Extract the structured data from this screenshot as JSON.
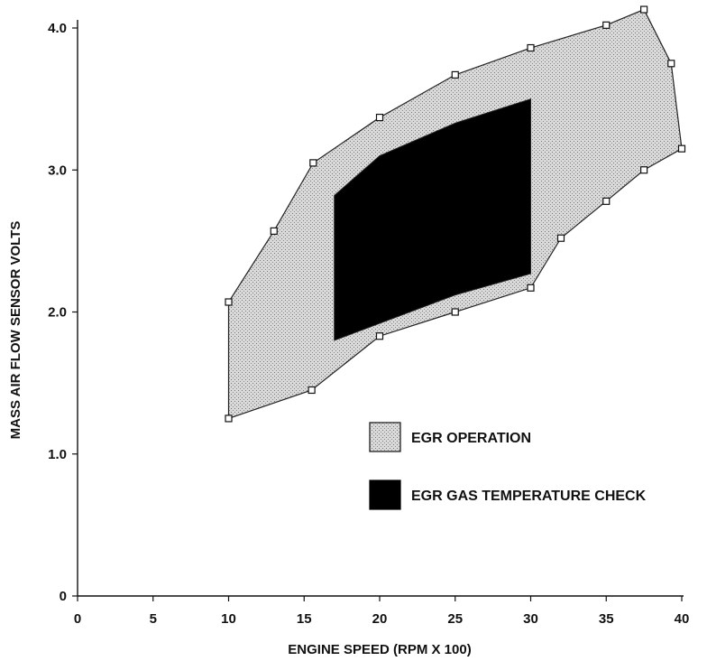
{
  "chart_data": {
    "type": "area",
    "xlabel": "ENGINE SPEED (RPM X 100)",
    "ylabel": "MASS AIR FLOW SENSOR VOLTS",
    "xlim": [
      0,
      40
    ],
    "ylim": [
      0,
      4.2
    ],
    "x_ticks": [
      0,
      5,
      10,
      15,
      20,
      25,
      30,
      35,
      40
    ],
    "x_tick_labels": [
      "0",
      "5",
      "10",
      "15",
      "20",
      "25",
      "30",
      "35",
      "40"
    ],
    "y_ticks": [
      0,
      1.0,
      2.0,
      3.0,
      4.0
    ],
    "y_tick_labels": [
      "0",
      "1.0",
      "2.0",
      "3.0",
      "4.0"
    ],
    "grid": false,
    "legend_position": "right-middle",
    "series": [
      {
        "name": "EGR OPERATION",
        "fill": "#bdbdbd",
        "points": [
          [
            10,
            2.07
          ],
          [
            13.0,
            2.57
          ],
          [
            15.6,
            3.05
          ],
          [
            20,
            3.37
          ],
          [
            25,
            3.67
          ],
          [
            30,
            3.86
          ],
          [
            35,
            4.02
          ],
          [
            37.5,
            4.13
          ],
          [
            39.3,
            3.75
          ],
          [
            40,
            3.15
          ],
          [
            37.5,
            3.0
          ],
          [
            35,
            2.78
          ],
          [
            32,
            2.52
          ],
          [
            30,
            2.17
          ],
          [
            25,
            2.0
          ],
          [
            20,
            1.83
          ],
          [
            15.5,
            1.45
          ],
          [
            10,
            1.25
          ]
        ]
      },
      {
        "name": "EGR GAS TEMPERATURE CHECK",
        "fill": "#000000",
        "points": [
          [
            17,
            2.82
          ],
          [
            20,
            3.1
          ],
          [
            25,
            3.33
          ],
          [
            30,
            3.5
          ],
          [
            30,
            2.27
          ],
          [
            25,
            2.12
          ],
          [
            20,
            1.92
          ],
          [
            17,
            1.8
          ]
        ]
      }
    ]
  }
}
